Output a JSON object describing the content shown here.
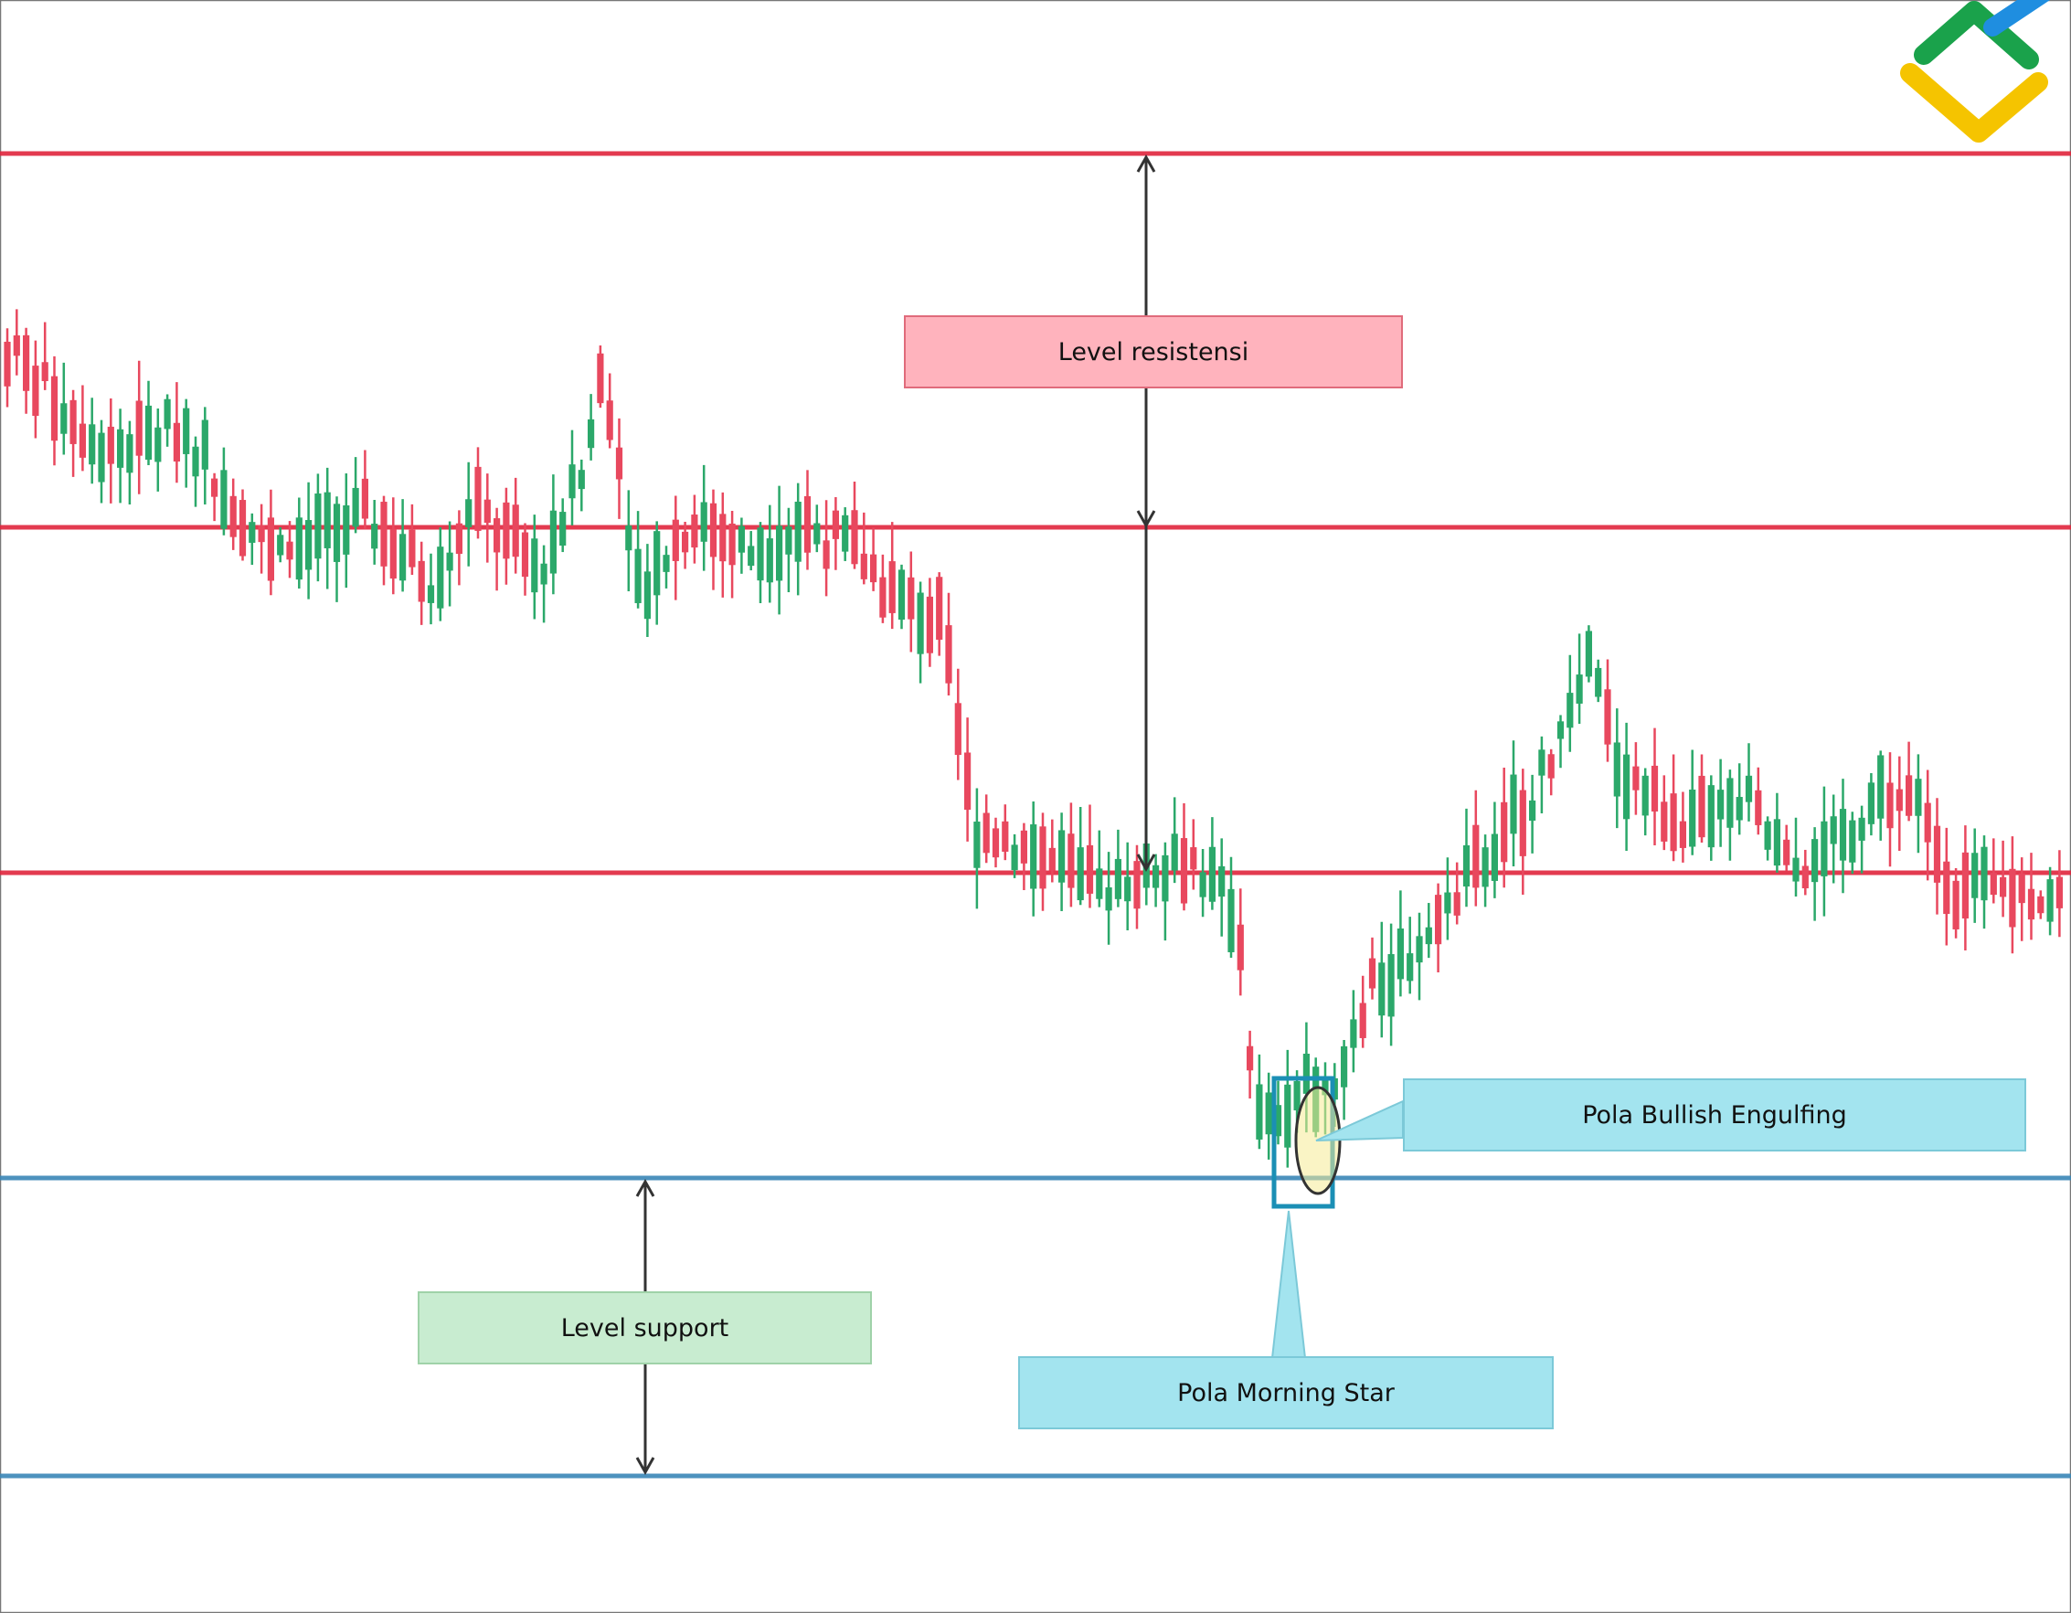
{
  "chart_data": {
    "type": "candlestick",
    "title": "",
    "xlabel": "",
    "ylabel": "",
    "ylim": [
      0,
      1765
    ],
    "colors": {
      "bull": "#2ba86a",
      "bear": "#e8485e",
      "resistance_line": "#e0253c",
      "support_line": "#3a87b7",
      "annotation_blue": "#1b8fb5"
    },
    "levels": [
      {
        "name": "resistance_top",
        "kind": "resistance",
        "y": 1597
      },
      {
        "name": "resistance_mid",
        "kind": "resistance",
        "y": 1188
      },
      {
        "name": "resistance_low",
        "kind": "resistance",
        "y": 810
      },
      {
        "name": "support_top",
        "kind": "support",
        "y": 476
      },
      {
        "name": "support_bottom",
        "kind": "support",
        "y": 150
      }
    ],
    "path_anchors": [
      [
        0,
        1390
      ],
      [
        120,
        1270
      ],
      [
        200,
        1300
      ],
      [
        300,
        1150
      ],
      [
        400,
        1200
      ],
      [
        470,
        1130
      ],
      [
        520,
        1210
      ],
      [
        590,
        1140
      ],
      [
        640,
        1250
      ],
      [
        660,
        1370
      ],
      [
        700,
        1120
      ],
      [
        760,
        1200
      ],
      [
        820,
        1160
      ],
      [
        880,
        1190
      ],
      [
        940,
        1160
      ],
      [
        980,
        1110
      ],
      [
        1030,
        1080
      ],
      [
        1065,
        860
      ],
      [
        1100,
        850
      ],
      [
        1200,
        790
      ],
      [
        1260,
        820
      ],
      [
        1300,
        830
      ],
      [
        1355,
        760
      ],
      [
        1375,
        540
      ],
      [
        1400,
        530
      ],
      [
        1420,
        570
      ],
      [
        1460,
        580
      ],
      [
        1500,
        680
      ],
      [
        1560,
        740
      ],
      [
        1620,
        820
      ],
      [
        1700,
        930
      ],
      [
        1740,
        1040
      ],
      [
        1770,
        930
      ],
      [
        1820,
        880
      ],
      [
        1870,
        860
      ],
      [
        1910,
        890
      ],
      [
        1960,
        810
      ],
      [
        2000,
        830
      ],
      [
        2060,
        900
      ],
      [
        2100,
        880
      ],
      [
        2140,
        790
      ],
      [
        2220,
        790
      ],
      [
        2266,
        780
      ]
    ],
    "annotations": {
      "resistance_arrow": {
        "x": 1254,
        "y_top": 1597,
        "y_mid": 1188,
        "y_bottom": 810
      },
      "support_arrow": {
        "x": 706,
        "y_top": 476,
        "y_bottom": 150
      },
      "morning_star_box": {
        "x_left": 1394,
        "x_right": 1458,
        "y_top": 585,
        "y_bottom": 445
      },
      "engulfing_ellipse": {
        "cx": 1442,
        "cy": 517,
        "rx": 24,
        "ry": 58
      }
    }
  },
  "labels": {
    "resistance": "Level resistensi",
    "support": "Level support",
    "bullish_engulfing": "Pola Bullish Engulfing",
    "morning_star": "Pola Morning Star"
  },
  "logo": {
    "name": "brand-logo",
    "colors": [
      "#1aa24b",
      "#1f8ee0",
      "#f5c400"
    ]
  }
}
